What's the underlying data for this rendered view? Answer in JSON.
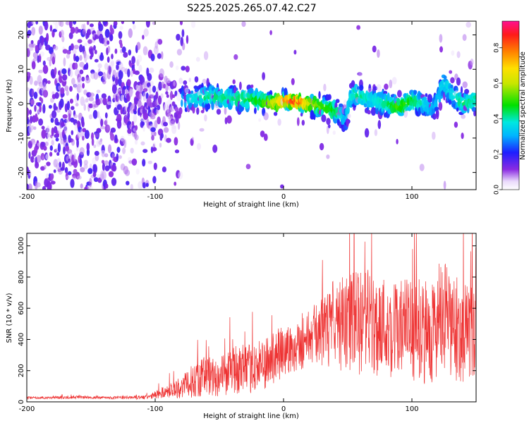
{
  "figure": {
    "title": "S225.2025.265.07.42.C27"
  },
  "chart_data": [
    {
      "type": "heatmap",
      "xlabel": "Height of straight line (km)",
      "ylabel": "Frequency (Hz)",
      "xlim": [
        -200,
        150
      ],
      "ylim": [
        -25,
        24
      ],
      "xticks": [
        -200,
        -100,
        0,
        100
      ],
      "yticks": [
        -20,
        -10,
        0,
        10,
        20
      ],
      "colorbar": {
        "label": "Normalized spectral amplitude",
        "range": [
          0,
          0.95
        ],
        "ticks": [
          0.0,
          0.2,
          0.4,
          0.6,
          0.8
        ],
        "colormap": "white-purple-blue-cyan-green-yellow-red-magenta"
      },
      "ridge": {
        "x": [
          -200,
          -150,
          -110,
          -100,
          -80,
          -60,
          -40,
          -20,
          -10,
          0,
          10,
          20,
          30,
          40,
          45,
          48,
          52,
          55,
          60,
          70,
          80,
          90,
          100,
          110,
          115,
          120,
          125,
          130,
          140,
          150
        ],
        "freq": [
          0,
          0,
          0,
          0,
          1,
          2,
          1.5,
          1,
          0,
          1,
          0.5,
          0,
          -1,
          -2,
          -3,
          -5,
          1,
          3,
          2,
          1,
          0,
          -1,
          1,
          0,
          -2,
          1,
          6,
          3,
          0,
          1
        ],
        "amplitude": [
          0.05,
          0.06,
          0.08,
          0.15,
          0.3,
          0.4,
          0.4,
          0.45,
          0.55,
          0.75,
          0.85,
          0.6,
          0.5,
          0.45,
          0.35,
          0.3,
          0.35,
          0.4,
          0.4,
          0.35,
          0.4,
          0.5,
          0.45,
          0.35,
          0.3,
          0.3,
          0.35,
          0.35,
          0.4,
          0.4
        ]
      }
    },
    {
      "type": "line",
      "xlabel": "Height of straight line (km)",
      "ylabel": "SNR (10 * v/v)",
      "xlim": [
        -200,
        150
      ],
      "ylim": [
        0,
        1080
      ],
      "xticks": [
        -200,
        -100,
        0,
        100
      ],
      "yticks": [
        0,
        200,
        400,
        600,
        800,
        1000
      ],
      "color": "#ee3333",
      "series": [
        {
          "x": [
            -200,
            -180,
            -160,
            -140,
            -120,
            -105,
            -100,
            -90,
            -80,
            -75,
            -70,
            -65,
            -60,
            -55,
            -50,
            -45,
            -40,
            -35,
            -30,
            -25,
            -20,
            -15,
            -10,
            -5,
            0,
            5,
            10,
            15,
            20,
            25,
            30,
            35,
            40,
            45,
            50,
            55,
            60,
            65,
            70,
            75,
            80,
            85,
            90,
            95,
            100,
            105,
            110,
            115,
            120,
            125,
            130,
            135,
            140,
            145,
            150
          ],
          "y": [
            25,
            27,
            30,
            26,
            28,
            30,
            45,
            70,
            90,
            110,
            140,
            160,
            170,
            160,
            165,
            180,
            200,
            210,
            200,
            215,
            230,
            240,
            270,
            290,
            320,
            340,
            360,
            380,
            420,
            440,
            450,
            460,
            480,
            500,
            490,
            510,
            500,
            520,
            480,
            500,
            490,
            470,
            460,
            480,
            450,
            470,
            440,
            460,
            480,
            520,
            480,
            460,
            450,
            440,
            430
          ],
          "envelope": [
            8,
            8,
            10,
            8,
            10,
            15,
            25,
            45,
            70,
            90,
            110,
            130,
            140,
            130,
            135,
            140,
            150,
            160,
            150,
            160,
            160,
            170,
            170,
            180,
            180,
            170,
            170,
            170,
            180,
            190,
            220,
            250,
            280,
            300,
            320,
            340,
            330,
            350,
            340,
            330,
            320,
            330,
            320,
            330,
            320,
            330,
            330,
            340,
            360,
            380,
            360,
            340,
            330,
            330,
            320
          ]
        }
      ]
    }
  ]
}
